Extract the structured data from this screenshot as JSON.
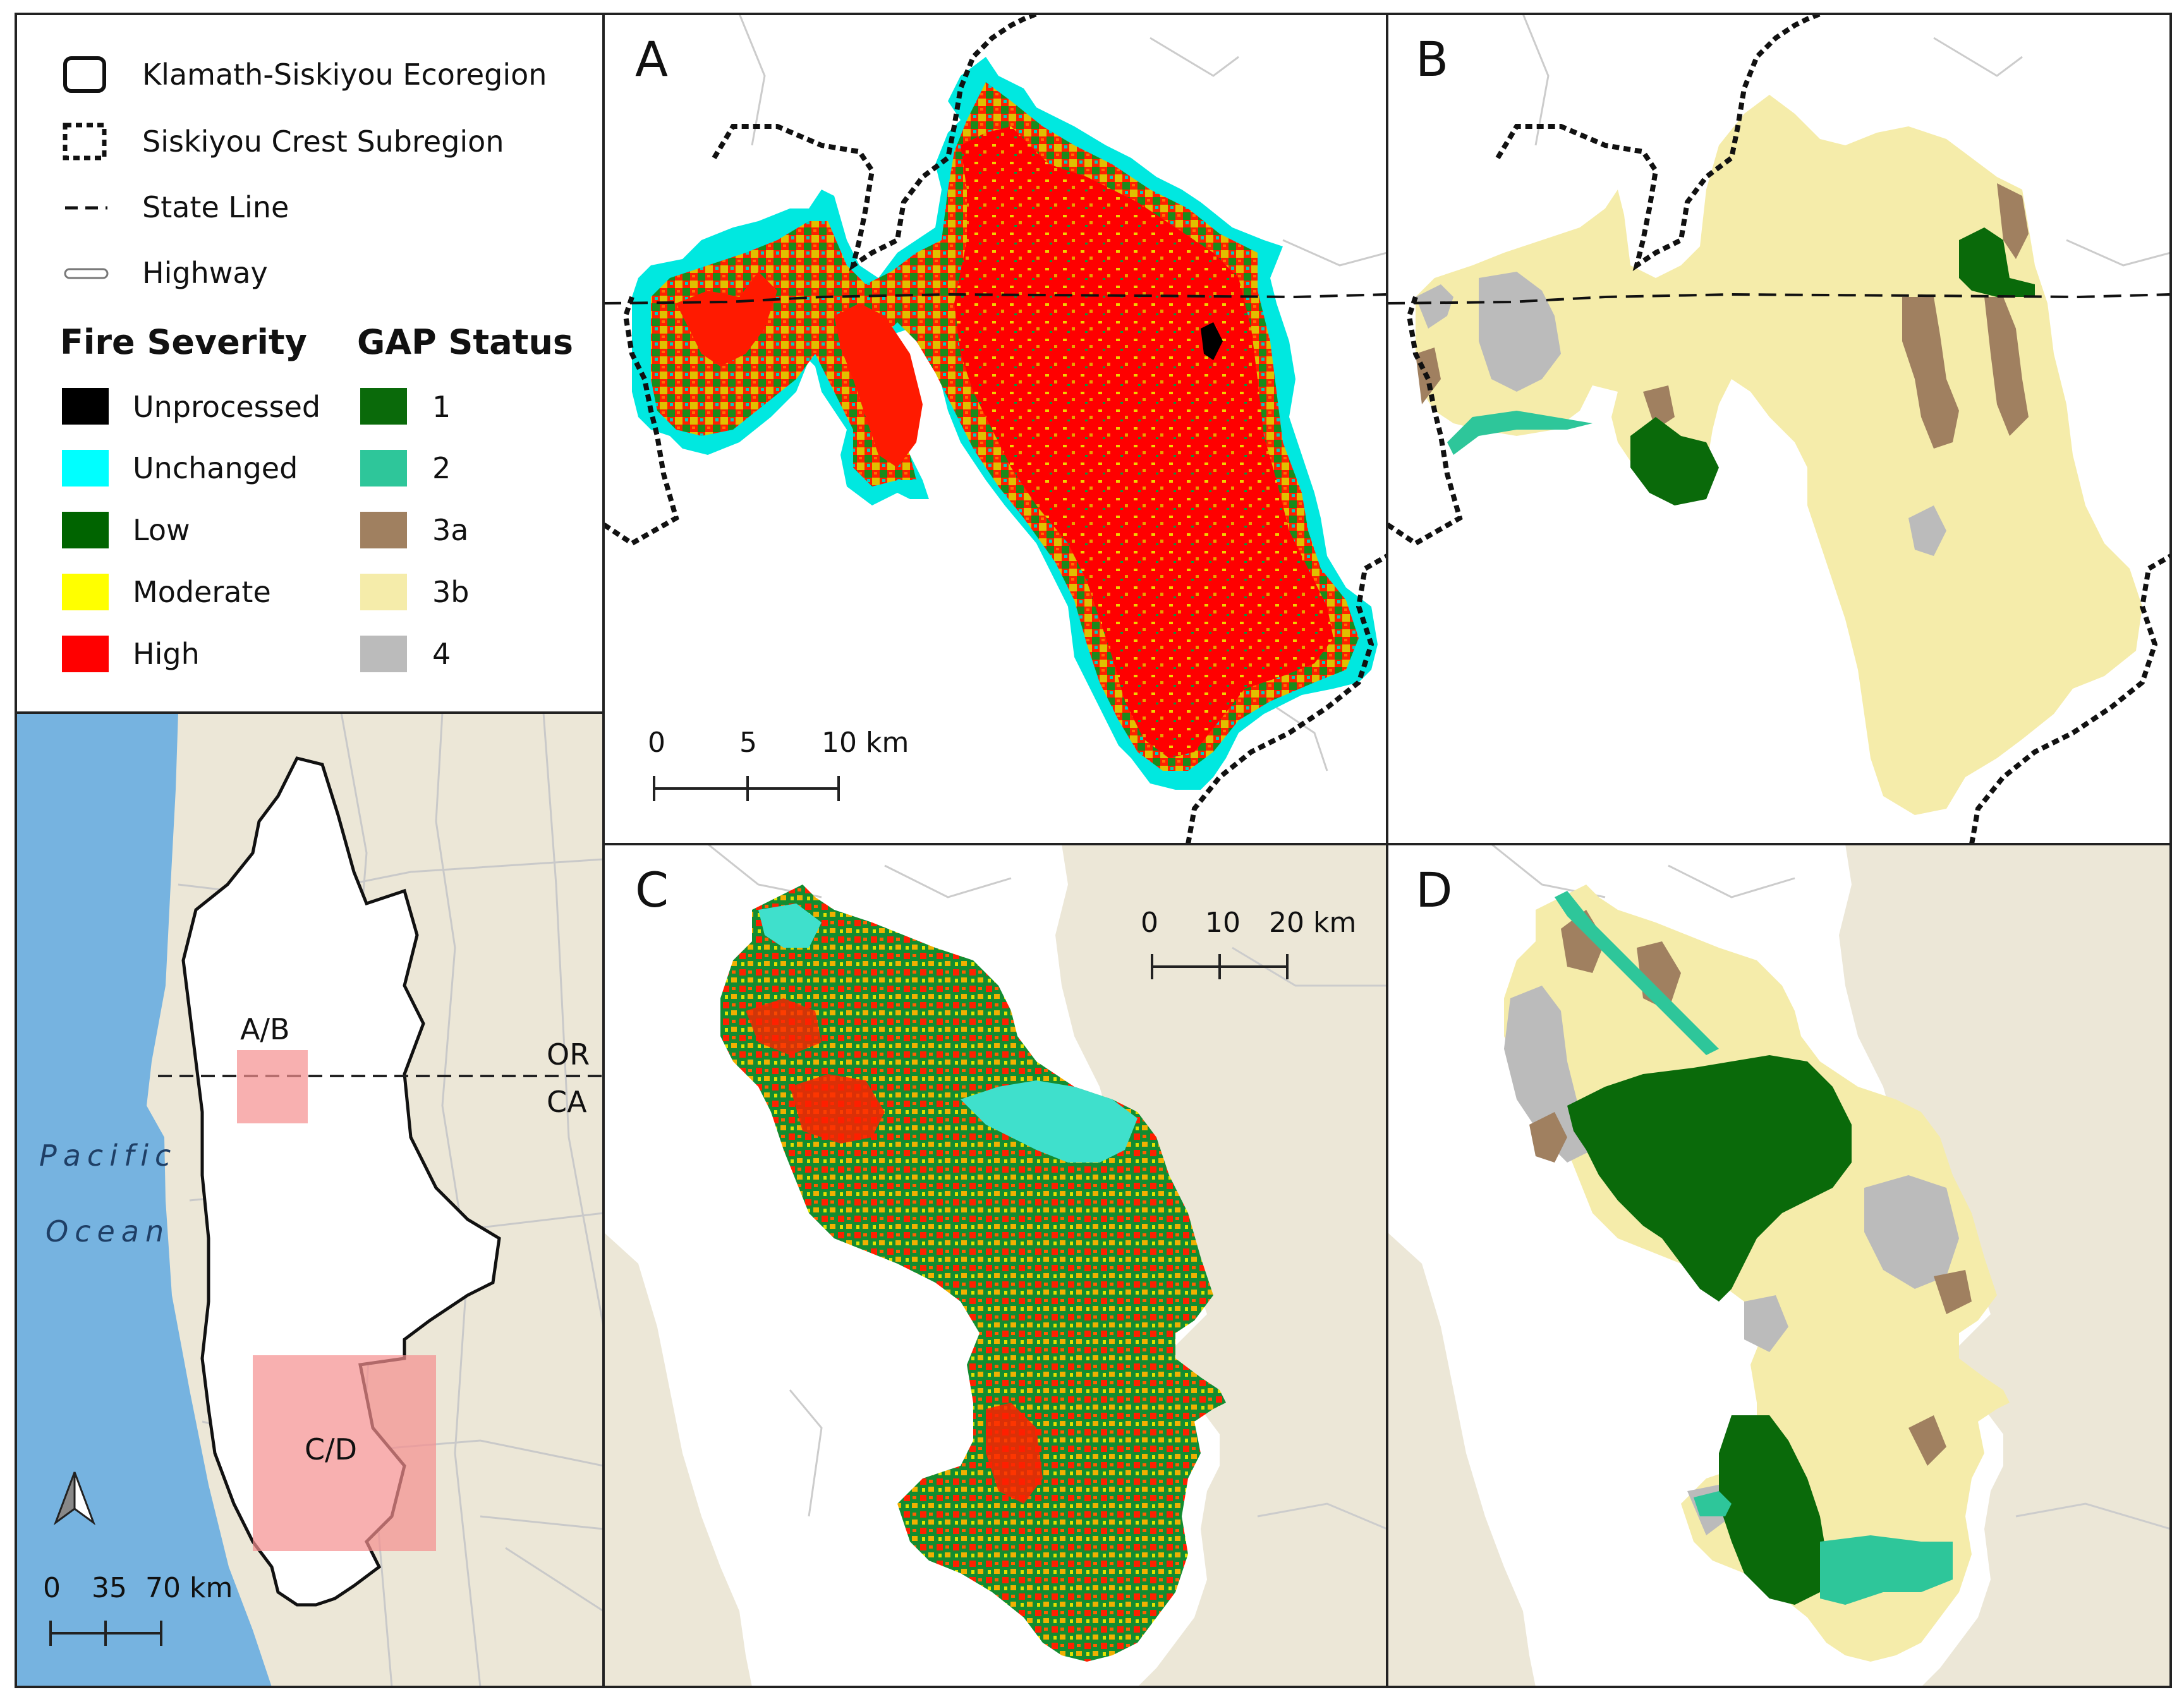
{
  "legend": {
    "boundaries": [
      {
        "label": "Klamath-Siskiyou Ecoregion",
        "icon": "solid-outline-square"
      },
      {
        "label": "Siskiyou Crest Subregion",
        "icon": "dotted-outline-square"
      },
      {
        "label": "State Line",
        "icon": "dashed-line"
      },
      {
        "label": "Highway",
        "icon": "double-line"
      }
    ],
    "fire_severity_title": "Fire Severity",
    "fire_severity": [
      {
        "label": "Unprocessed",
        "color": "#000000"
      },
      {
        "label": "Unchanged",
        "color": "#00ffff"
      },
      {
        "label": "Low",
        "color": "#006400"
      },
      {
        "label": "Moderate",
        "color": "#ffff00"
      },
      {
        "label": "High",
        "color": "#ff0000"
      }
    ],
    "gap_title": "GAP Status",
    "gap_status": [
      {
        "label": "1",
        "color": "#0a6a0a"
      },
      {
        "label": "2",
        "color": "#2ec69a"
      },
      {
        "label": "3a",
        "color": "#a08060"
      },
      {
        "label": "3b",
        "color": "#f5ecaa"
      },
      {
        "label": "4",
        "color": "#bbbbbb"
      }
    ]
  },
  "panels": {
    "a": {
      "label": "A",
      "scale": [
        "0",
        "5",
        "10 km"
      ]
    },
    "b": {
      "label": "B"
    },
    "c": {
      "label": "C",
      "scale": [
        "0",
        "10",
        "20 km"
      ]
    },
    "d": {
      "label": "D"
    }
  },
  "overview": {
    "ocean_line1": "Pacific",
    "ocean_line2": "Ocean",
    "state_or": "OR",
    "state_ca": "CA",
    "box_ab": "A/B",
    "box_cd": "C/D",
    "scale": [
      "0",
      "35",
      "70 km"
    ],
    "north_arrow": "north-arrow-icon"
  },
  "colors": {
    "ocean": "#76b3e0",
    "land": "#ece7d7",
    "extent_box": "#f58e8e"
  }
}
